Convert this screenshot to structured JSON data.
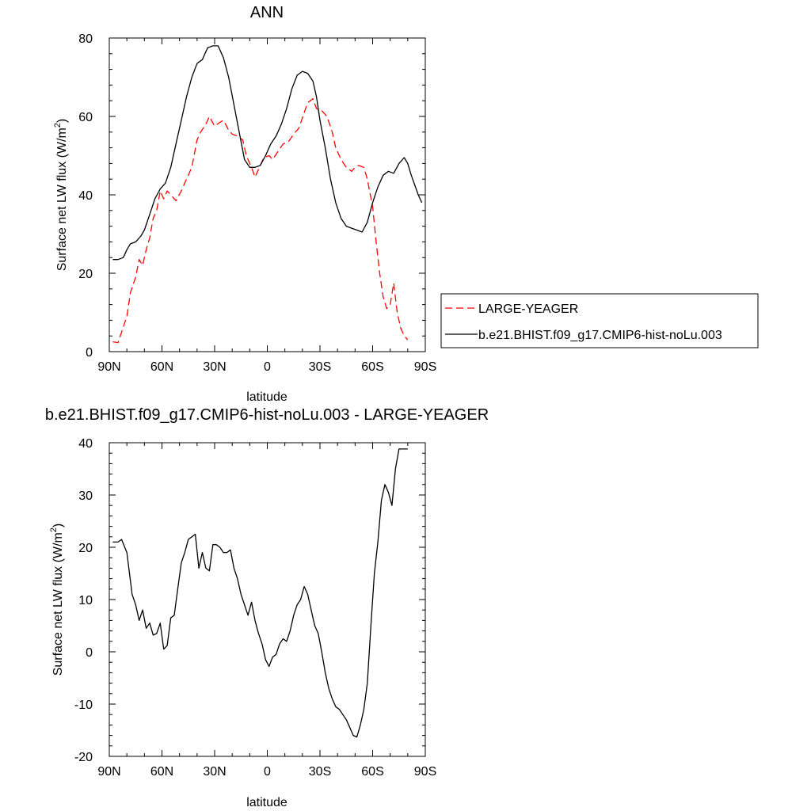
{
  "chart_data": [
    {
      "type": "line",
      "title": "ANN",
      "xlabel": "latitude",
      "ylabel": "Surface net LW flux (W/m",
      "ylabel_sup": "2",
      "ylabel_close": ")",
      "xlim": [
        90,
        -90
      ],
      "ylim": [
        0,
        80
      ],
      "x_ticks": [
        90,
        60,
        30,
        0,
        -30,
        -60,
        -90
      ],
      "x_tick_labels": [
        "90N",
        "60N",
        "30N",
        "0",
        "30S",
        "60S",
        "90S"
      ],
      "y_ticks": [
        0,
        20,
        40,
        60,
        80
      ],
      "y_tick_labels": [
        "0",
        "20",
        "40",
        "60",
        "80"
      ],
      "grid": false,
      "legend": "right",
      "series": [
        {
          "name": "LARGE-YEAGER",
          "color": "#ff0000",
          "style": "dashed",
          "x": [
            88,
            85,
            83,
            80,
            78,
            75,
            73,
            71,
            69,
            67,
            65,
            63,
            61,
            59,
            57,
            55,
            52,
            49,
            46,
            43,
            40,
            38,
            35,
            33,
            30,
            27,
            25,
            22,
            20,
            17,
            14,
            12,
            9,
            7,
            4,
            2,
            -1,
            -3,
            -6,
            -9,
            -12,
            -15,
            -18,
            -21,
            -23,
            -26,
            -28,
            -31,
            -34,
            -37,
            -39,
            -42,
            -45,
            -48,
            -50,
            -52,
            -55,
            -57,
            -60,
            -62,
            -64,
            -66,
            -68,
            -70,
            -72,
            -74,
            -76,
            -78,
            -80
          ],
          "y": [
            2.5,
            2.3,
            5,
            9,
            15,
            19,
            23.5,
            22,
            26,
            29,
            34,
            36,
            41,
            39,
            41,
            40,
            38.5,
            41,
            44,
            47,
            54,
            56,
            58,
            60,
            57.5,
            58.5,
            59,
            56.5,
            55.5,
            55,
            54,
            50,
            47,
            44.5,
            47.5,
            49.5,
            50,
            49,
            51,
            53,
            53.5,
            55.5,
            57,
            61,
            63.5,
            64.5,
            62,
            61.5,
            60,
            56,
            52,
            49,
            47,
            46,
            47,
            47.5,
            47,
            44,
            37,
            28,
            20,
            14,
            11,
            12,
            17.5,
            10,
            6,
            4,
            3
          ]
        },
        {
          "name": "b.e21.BHIST.f09_g17.CMIP6-hist-noLu.003",
          "color": "#000000",
          "style": "solid",
          "x": [
            88,
            85,
            82,
            80,
            78,
            75,
            72,
            70,
            67,
            64,
            61,
            58,
            55,
            52,
            49,
            46,
            43,
            40,
            37,
            34,
            31,
            28,
            25,
            22,
            19,
            16,
            13,
            10,
            7,
            4,
            1,
            -2,
            -5,
            -8,
            -11,
            -14,
            -17,
            -20,
            -23,
            -26,
            -28,
            -30,
            -33,
            -36,
            -39,
            -42,
            -45,
            -48,
            -51,
            -54,
            -57,
            -60,
            -63,
            -66,
            -69,
            -72,
            -75,
            -78,
            -80,
            -82,
            -84,
            -86,
            -88
          ],
          "y": [
            23.5,
            23.5,
            24,
            26,
            27.5,
            28,
            29.5,
            31,
            35,
            39,
            41.5,
            43,
            47,
            53,
            59,
            65,
            70,
            73.5,
            74.5,
            77.5,
            78,
            78,
            75,
            70,
            63,
            56,
            49,
            47,
            47,
            47.5,
            50,
            53,
            55,
            58,
            62,
            67,
            70.5,
            71.5,
            71,
            69,
            65,
            59,
            52,
            44,
            38,
            34,
            32,
            31.5,
            31,
            30.5,
            33,
            38,
            42,
            45,
            46,
            45.5,
            48,
            49.5,
            48,
            45,
            42.5,
            40,
            38
          ]
        }
      ]
    },
    {
      "type": "line",
      "title": "b.e21.BHIST.f09_g17.CMIP6-hist-noLu.003 - LARGE-YEAGER",
      "xlabel": "latitude",
      "ylabel": "Surface net LW flux (W/m",
      "ylabel_sup": "2",
      "ylabel_close": ")",
      "xlim": [
        90,
        -90
      ],
      "ylim": [
        -20,
        40
      ],
      "x_ticks": [
        90,
        60,
        30,
        0,
        -30,
        -60,
        -90
      ],
      "x_tick_labels": [
        "90N",
        "60N",
        "30N",
        "0",
        "30S",
        "60S",
        "90S"
      ],
      "y_ticks": [
        -20,
        -10,
        0,
        10,
        20,
        30,
        40
      ],
      "y_tick_labels": [
        "-20",
        "-10",
        "0",
        "10",
        "20",
        "30",
        "40"
      ],
      "grid": false,
      "series": [
        {
          "color": "#000000",
          "style": "solid",
          "x": [
            88,
            85,
            83,
            80,
            77,
            75,
            73,
            71,
            69,
            67,
            65,
            63,
            61,
            59,
            57,
            55,
            53,
            51,
            49,
            47,
            45,
            43,
            41,
            39,
            37,
            35,
            33,
            31,
            29,
            27,
            25,
            23,
            21,
            19,
            17,
            15,
            13,
            11,
            9,
            7,
            5,
            3,
            1,
            -1,
            -3,
            -5,
            -7,
            -9,
            -11,
            -13,
            -15,
            -17,
            -19,
            -21,
            -23,
            -25,
            -27,
            -29,
            -31,
            -33,
            -35,
            -37,
            -39,
            -41,
            -43,
            -45,
            -47,
            -49,
            -51,
            -53,
            -55,
            -57,
            -59,
            -61,
            -63,
            -65,
            -67,
            -69,
            -71,
            -73,
            -75,
            -77,
            -80
          ],
          "y": [
            21,
            21,
            21.5,
            19,
            11,
            9,
            6,
            8,
            4.5,
            5.5,
            3.2,
            3.5,
            5.5,
            0.5,
            1.2,
            6.5,
            7,
            12,
            17,
            19,
            21.5,
            22,
            22.5,
            16,
            19,
            16,
            15.5,
            20.5,
            20.5,
            20,
            19,
            19,
            19.5,
            16,
            14,
            11,
            9,
            7,
            9.5,
            6,
            3.5,
            1.5,
            -1.5,
            -2.8,
            -1,
            -0.5,
            1.5,
            2.5,
            2,
            4,
            7,
            9,
            10,
            12.5,
            11,
            8,
            5,
            3.5,
            0,
            -4,
            -7,
            -9,
            -10.5,
            -11,
            -12,
            -13,
            -14.5,
            -16,
            -16.3,
            -14,
            -11,
            -6,
            5,
            15,
            21,
            29,
            32,
            30.5,
            28,
            35,
            38.8,
            38.8,
            38.8
          ]
        }
      ]
    }
  ]
}
